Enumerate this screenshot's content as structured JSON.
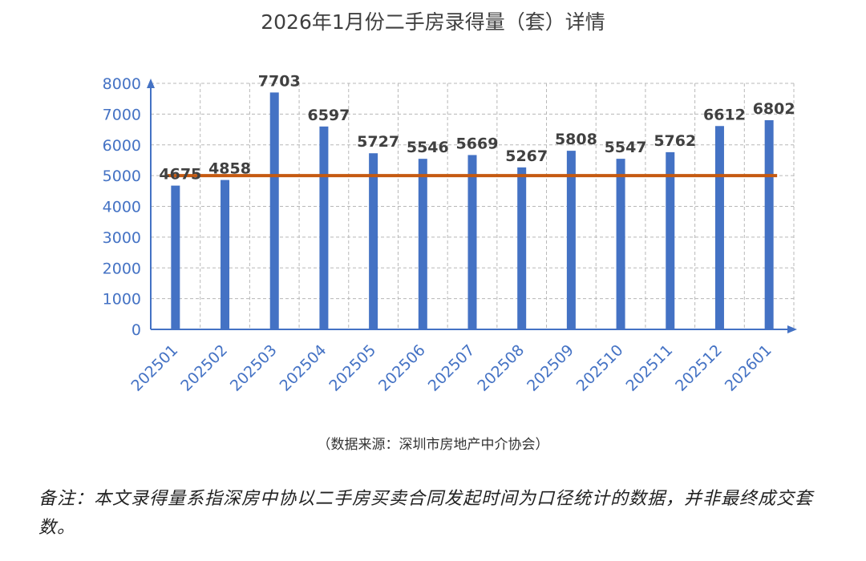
{
  "chart_data": {
    "type": "bar",
    "title": "2026年1月份二手房录得量（套）详情",
    "categories": [
      "202501",
      "202502",
      "202503",
      "202504",
      "202505",
      "202506",
      "202507",
      "202508",
      "202509",
      "202510",
      "202511",
      "202512",
      "202601"
    ],
    "values": [
      4675,
      4858,
      7703,
      6597,
      5727,
      5546,
      5669,
      5267,
      5808,
      5547,
      5762,
      6612,
      6802
    ],
    "reference_line": 5000,
    "ylim": [
      0,
      8000
    ],
    "yticks": [
      0,
      1000,
      2000,
      3000,
      4000,
      5000,
      6000,
      7000,
      8000
    ],
    "grid": true,
    "xlabel": "",
    "ylabel": "",
    "colors": {
      "bar": "#4472c4",
      "reference_line": "#c55a11",
      "axis": "#4472c4",
      "tick_label": "#4472c4",
      "grid": "#b8b8b8",
      "data_label": "#404040"
    }
  },
  "source": "（数据来源：深圳市房地产中介协会）",
  "note": "备注：本文录得量系指深房中协以二手房买卖合同发起时间为口径统计的数据，并非最终成交套数。"
}
